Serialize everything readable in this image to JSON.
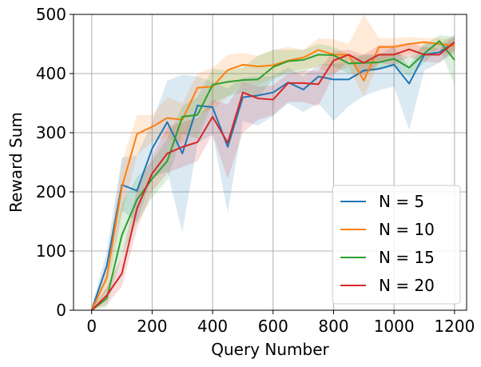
{
  "chart_data": {
    "type": "line",
    "title": "",
    "xlabel": "Query Number",
    "ylabel": "Reward Sum",
    "xlim": [
      -60,
      1240
    ],
    "ylim": [
      0,
      500
    ],
    "xticks": [
      0,
      200,
      400,
      600,
      800,
      1000,
      1200
    ],
    "yticks": [
      0,
      100,
      200,
      300,
      400,
      500
    ],
    "grid": true,
    "legend_position": "bottom-right",
    "band_opacity": 0.16,
    "series": [
      {
        "name": "N = 5",
        "color": "#1f77b4",
        "x": [
          0,
          50,
          100,
          150,
          200,
          250,
          300,
          350,
          400,
          450,
          500,
          550,
          600,
          650,
          700,
          750,
          800,
          850,
          900,
          950,
          1000,
          1050,
          1100,
          1150,
          1200
        ],
        "y": [
          0,
          75,
          212,
          202,
          273,
          318,
          265,
          346,
          343,
          276,
          360,
          363,
          368,
          385,
          373,
          395,
          390,
          390,
          405,
          408,
          415,
          383,
          432,
          436,
          453
        ],
        "upper": [
          5,
          100,
          258,
          262,
          318,
          388,
          398,
          395,
          386,
          375,
          393,
          395,
          396,
          410,
          395,
          416,
          416,
          418,
          433,
          432,
          446,
          412,
          452,
          450,
          466
        ],
        "lower": [
          0,
          45,
          168,
          150,
          225,
          235,
          132,
          282,
          298,
          165,
          320,
          312,
          328,
          350,
          335,
          350,
          320,
          345,
          362,
          372,
          378,
          305,
          405,
          418,
          436
        ]
      },
      {
        "name": "N = 10",
        "color": "#ff7f0e",
        "x": [
          0,
          50,
          100,
          150,
          200,
          250,
          300,
          350,
          400,
          450,
          500,
          550,
          600,
          650,
          700,
          750,
          800,
          850,
          900,
          950,
          1000,
          1050,
          1100,
          1150,
          1200
        ],
        "y": [
          0,
          55,
          208,
          298,
          310,
          325,
          322,
          376,
          378,
          406,
          415,
          412,
          414,
          422,
          427,
          440,
          432,
          432,
          388,
          445,
          445,
          450,
          453,
          450,
          447
        ],
        "upper": [
          5,
          80,
          250,
          330,
          330,
          360,
          350,
          400,
          410,
          432,
          435,
          430,
          440,
          445,
          440,
          460,
          458,
          450,
          500,
          460,
          460,
          462,
          460,
          460,
          458
        ],
        "lower": [
          0,
          30,
          160,
          262,
          285,
          292,
          280,
          330,
          340,
          360,
          382,
          380,
          392,
          402,
          408,
          410,
          400,
          412,
          360,
          420,
          428,
          432,
          440,
          438,
          430
        ]
      },
      {
        "name": "N = 15",
        "color": "#2ca02c",
        "x": [
          0,
          50,
          100,
          150,
          200,
          250,
          300,
          350,
          400,
          450,
          500,
          550,
          600,
          650,
          700,
          750,
          800,
          850,
          900,
          950,
          1000,
          1050,
          1100,
          1150,
          1200
        ],
        "y": [
          0,
          20,
          127,
          187,
          222,
          252,
          327,
          330,
          381,
          386,
          389,
          390,
          411,
          421,
          423,
          432,
          431,
          417,
          418,
          419,
          425,
          410,
          434,
          455,
          423
        ],
        "upper": [
          3,
          40,
          182,
          225,
          252,
          290,
          345,
          360,
          408,
          405,
          410,
          430,
          440,
          440,
          440,
          450,
          445,
          432,
          430,
          432,
          436,
          428,
          448,
          465,
          462
        ],
        "lower": [
          0,
          5,
          92,
          148,
          190,
          220,
          298,
          290,
          350,
          362,
          368,
          360,
          390,
          400,
          402,
          415,
          412,
          400,
          402,
          406,
          412,
          395,
          418,
          444,
          380
        ]
      },
      {
        "name": "N = 20",
        "color": "#d62728",
        "x": [
          0,
          50,
          100,
          150,
          200,
          250,
          300,
          350,
          400,
          450,
          500,
          550,
          600,
          650,
          700,
          750,
          800,
          850,
          900,
          950,
          1000,
          1050,
          1100,
          1150,
          1200
        ],
        "y": [
          0,
          25,
          62,
          172,
          231,
          265,
          276,
          284,
          327,
          283,
          368,
          358,
          356,
          384,
          384,
          382,
          422,
          432,
          418,
          432,
          432,
          441,
          432,
          432,
          453
        ],
        "upper": [
          2,
          40,
          90,
          205,
          260,
          310,
          318,
          325,
          355,
          348,
          385,
          378,
          380,
          400,
          405,
          405,
          438,
          440,
          432,
          448,
          448,
          452,
          445,
          442,
          464
        ],
        "lower": [
          0,
          10,
          40,
          138,
          200,
          232,
          242,
          252,
          298,
          222,
          300,
          322,
          330,
          352,
          352,
          345,
          398,
          422,
          395,
          418,
          414,
          428,
          420,
          418,
          440
        ]
      }
    ]
  }
}
